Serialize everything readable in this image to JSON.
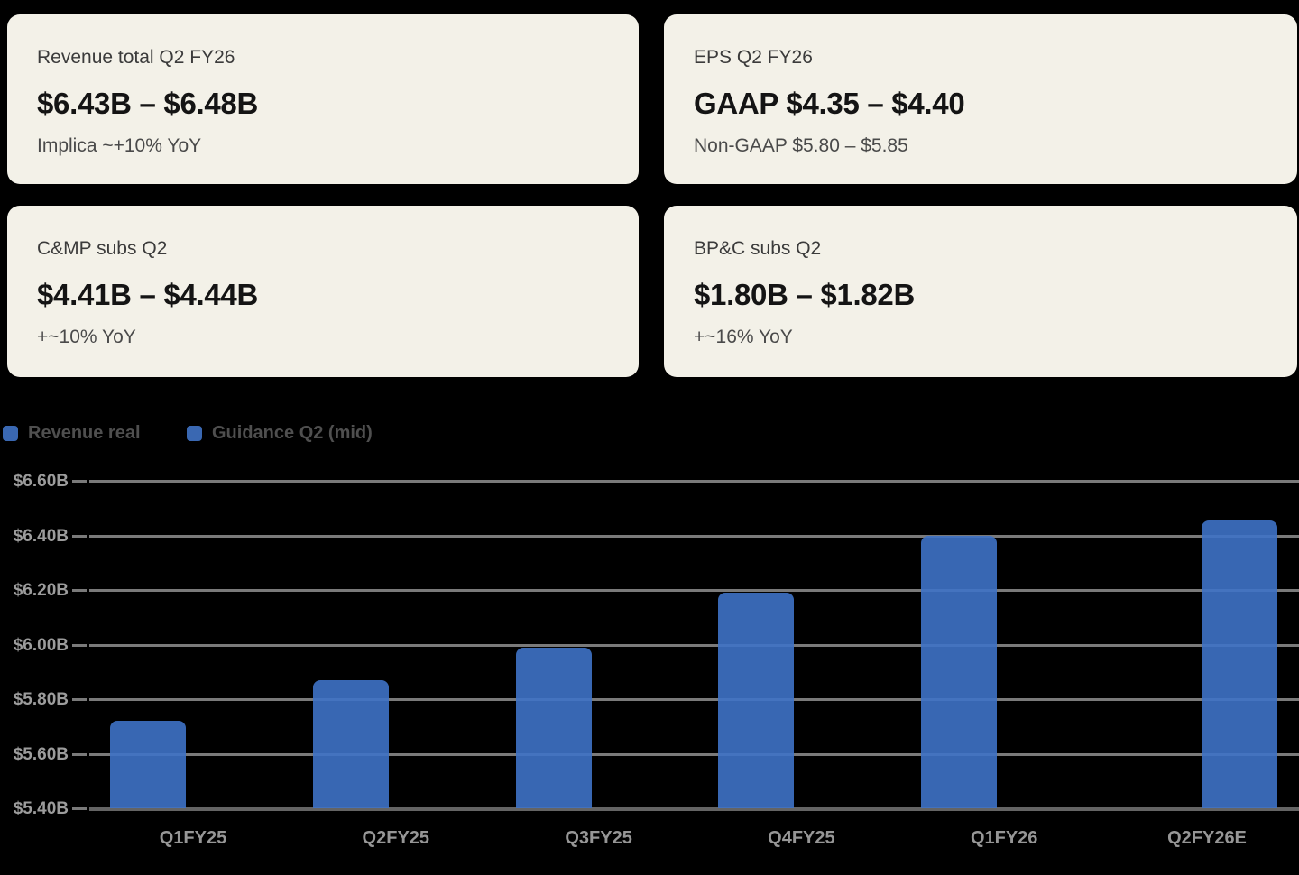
{
  "page": {
    "background": "#000000",
    "accent_blue": "#3A68B2",
    "card_background": "#F3F1E8"
  },
  "cards": [
    {
      "title": "Revenue total Q2 FY26",
      "value": "$6.43B – $6.48B",
      "subtitle": "Implica ~+10% YoY"
    },
    {
      "title": "EPS Q2 FY26",
      "value": "GAAP $4.35 – $4.40",
      "subtitle": "Non-GAAP $5.80 – $5.85"
    },
    {
      "title": "C&MP subs Q2",
      "value": "$4.41B – $4.44B",
      "subtitle": "+~10% YoY"
    },
    {
      "title": "BP&C subs Q2",
      "value": "$1.80B – $1.82B",
      "subtitle": "+~16% YoY"
    }
  ],
  "chart_data": {
    "type": "bar",
    "title": "",
    "xlabel": "",
    "ylabel": "",
    "categories": [
      "Q1FY25",
      "Q2FY25",
      "Q3FY25",
      "Q4FY25",
      "Q1FY26",
      "Q2FY26E"
    ],
    "series": [
      {
        "name": "Revenue real",
        "color": "#3A68B2",
        "values": [
          5.72,
          5.87,
          5.99,
          6.19,
          6.4,
          null
        ]
      },
      {
        "name": "Guidance Q2 (mid)",
        "color": "#3A68B2",
        "values": [
          null,
          null,
          null,
          null,
          null,
          6.455
        ]
      }
    ],
    "ylim": [
      5.4,
      6.6
    ],
    "y_ticks": [
      {
        "v": 6.6,
        "label": "$6.60B"
      },
      {
        "v": 6.4,
        "label": "$6.40B"
      },
      {
        "v": 6.2,
        "label": "$6.20B"
      },
      {
        "v": 6.0,
        "label": "$6.00B"
      },
      {
        "v": 5.8,
        "label": "$5.80B"
      },
      {
        "v": 5.6,
        "label": "$5.60B"
      },
      {
        "v": 5.4,
        "label": "$5.40B"
      }
    ],
    "grid": "on",
    "legend_position": "top-left"
  }
}
